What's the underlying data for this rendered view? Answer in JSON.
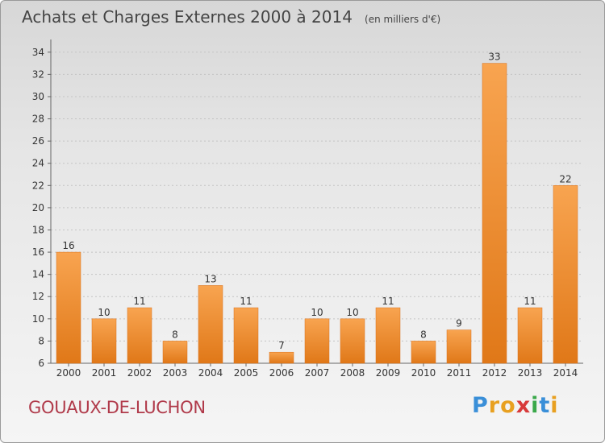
{
  "chart_data": {
    "type": "bar",
    "title": "Achats et Charges Externes 2000 à 2014",
    "subtitle": "(en milliers d'€)",
    "categories": [
      "2000",
      "2001",
      "2002",
      "2003",
      "2004",
      "2005",
      "2006",
      "2007",
      "2008",
      "2009",
      "2010",
      "2011",
      "2012",
      "2013",
      "2014"
    ],
    "values": [
      16,
      10,
      11,
      8,
      13,
      11,
      7,
      10,
      10,
      11,
      8,
      9,
      33,
      11,
      22
    ],
    "ylim": [
      6,
      35
    ],
    "yticks": [
      6,
      8,
      10,
      12,
      14,
      16,
      18,
      20,
      22,
      24,
      26,
      28,
      30,
      32,
      34
    ],
    "grid": true,
    "bar_color": "#f0913a"
  },
  "footer": {
    "commune": "GOUAUX-DE-LUCHON",
    "brand_letters": [
      "P",
      "r",
      "o",
      "x",
      "i",
      "t",
      "i"
    ],
    "brand_colors": [
      "#3a8fd8",
      "#e8a020",
      "#e8a020",
      "#d83a3a",
      "#3aa84a",
      "#3a8fd8",
      "#e8a020"
    ]
  }
}
